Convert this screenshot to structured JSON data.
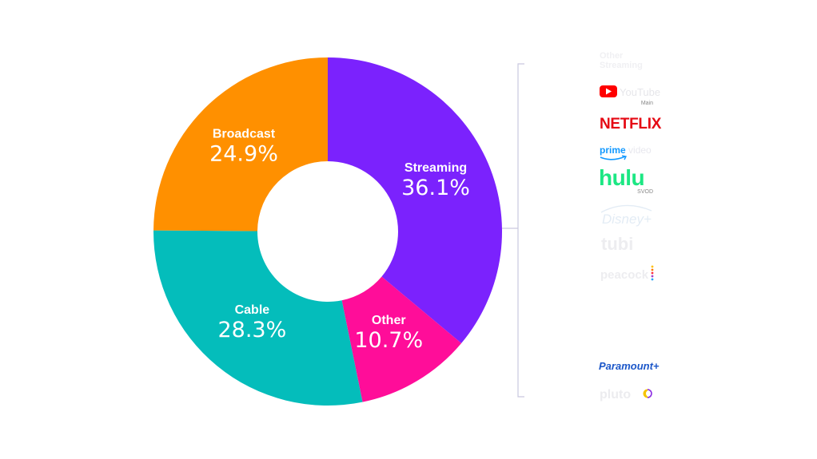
{
  "chart_data": {
    "type": "pie",
    "categories": [
      "Streaming",
      "Other",
      "Cable",
      "Broadcast"
    ],
    "values": [
      36.1,
      10.7,
      28.3,
      24.9
    ],
    "value_labels": [
      "36.1%",
      "10.7%",
      "28.3%",
      "24.9%"
    ],
    "colors": [
      "#7b22fd",
      "#ff0d99",
      "#04bdbb",
      "#ff9000"
    ],
    "donut": true
  },
  "services": {
    "header": "Other Streaming",
    "youtube": "YouTube",
    "youtube_sub": "Main",
    "netflix": "NETFLIX",
    "prime": "prime video",
    "hulu": "hulu",
    "hulu_sub": "SVOD",
    "disney": "Disney+",
    "tubi": "tubi",
    "peacock": "peacock",
    "paramount": "Paramount+",
    "pluto": "pluto"
  }
}
